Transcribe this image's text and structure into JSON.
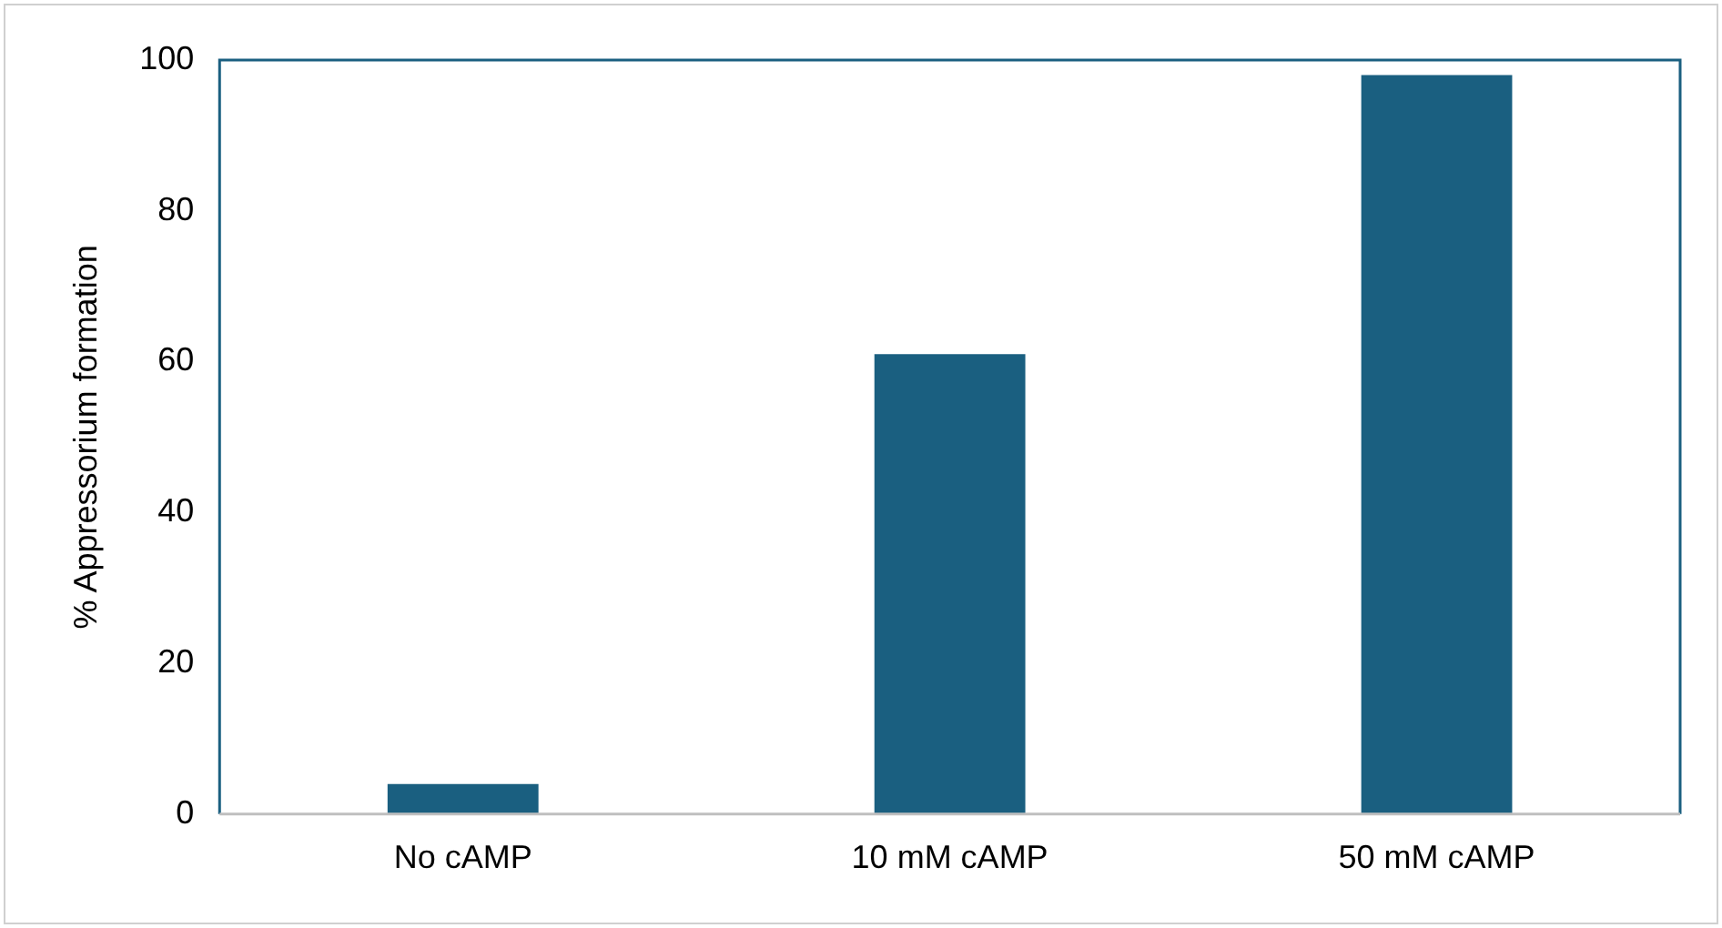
{
  "chart_data": {
    "type": "bar",
    "ylabel": "% Appressorium formation",
    "categories": [
      "No cAMP",
      "10 mM cAMP",
      "50 mM cAMP"
    ],
    "values": [
      4,
      61,
      98
    ],
    "color": "#1a5f80",
    "ylim": [
      0,
      100
    ],
    "yticks": [
      0,
      20,
      40,
      60,
      80,
      100
    ],
    "grid": false,
    "legend": false
  }
}
